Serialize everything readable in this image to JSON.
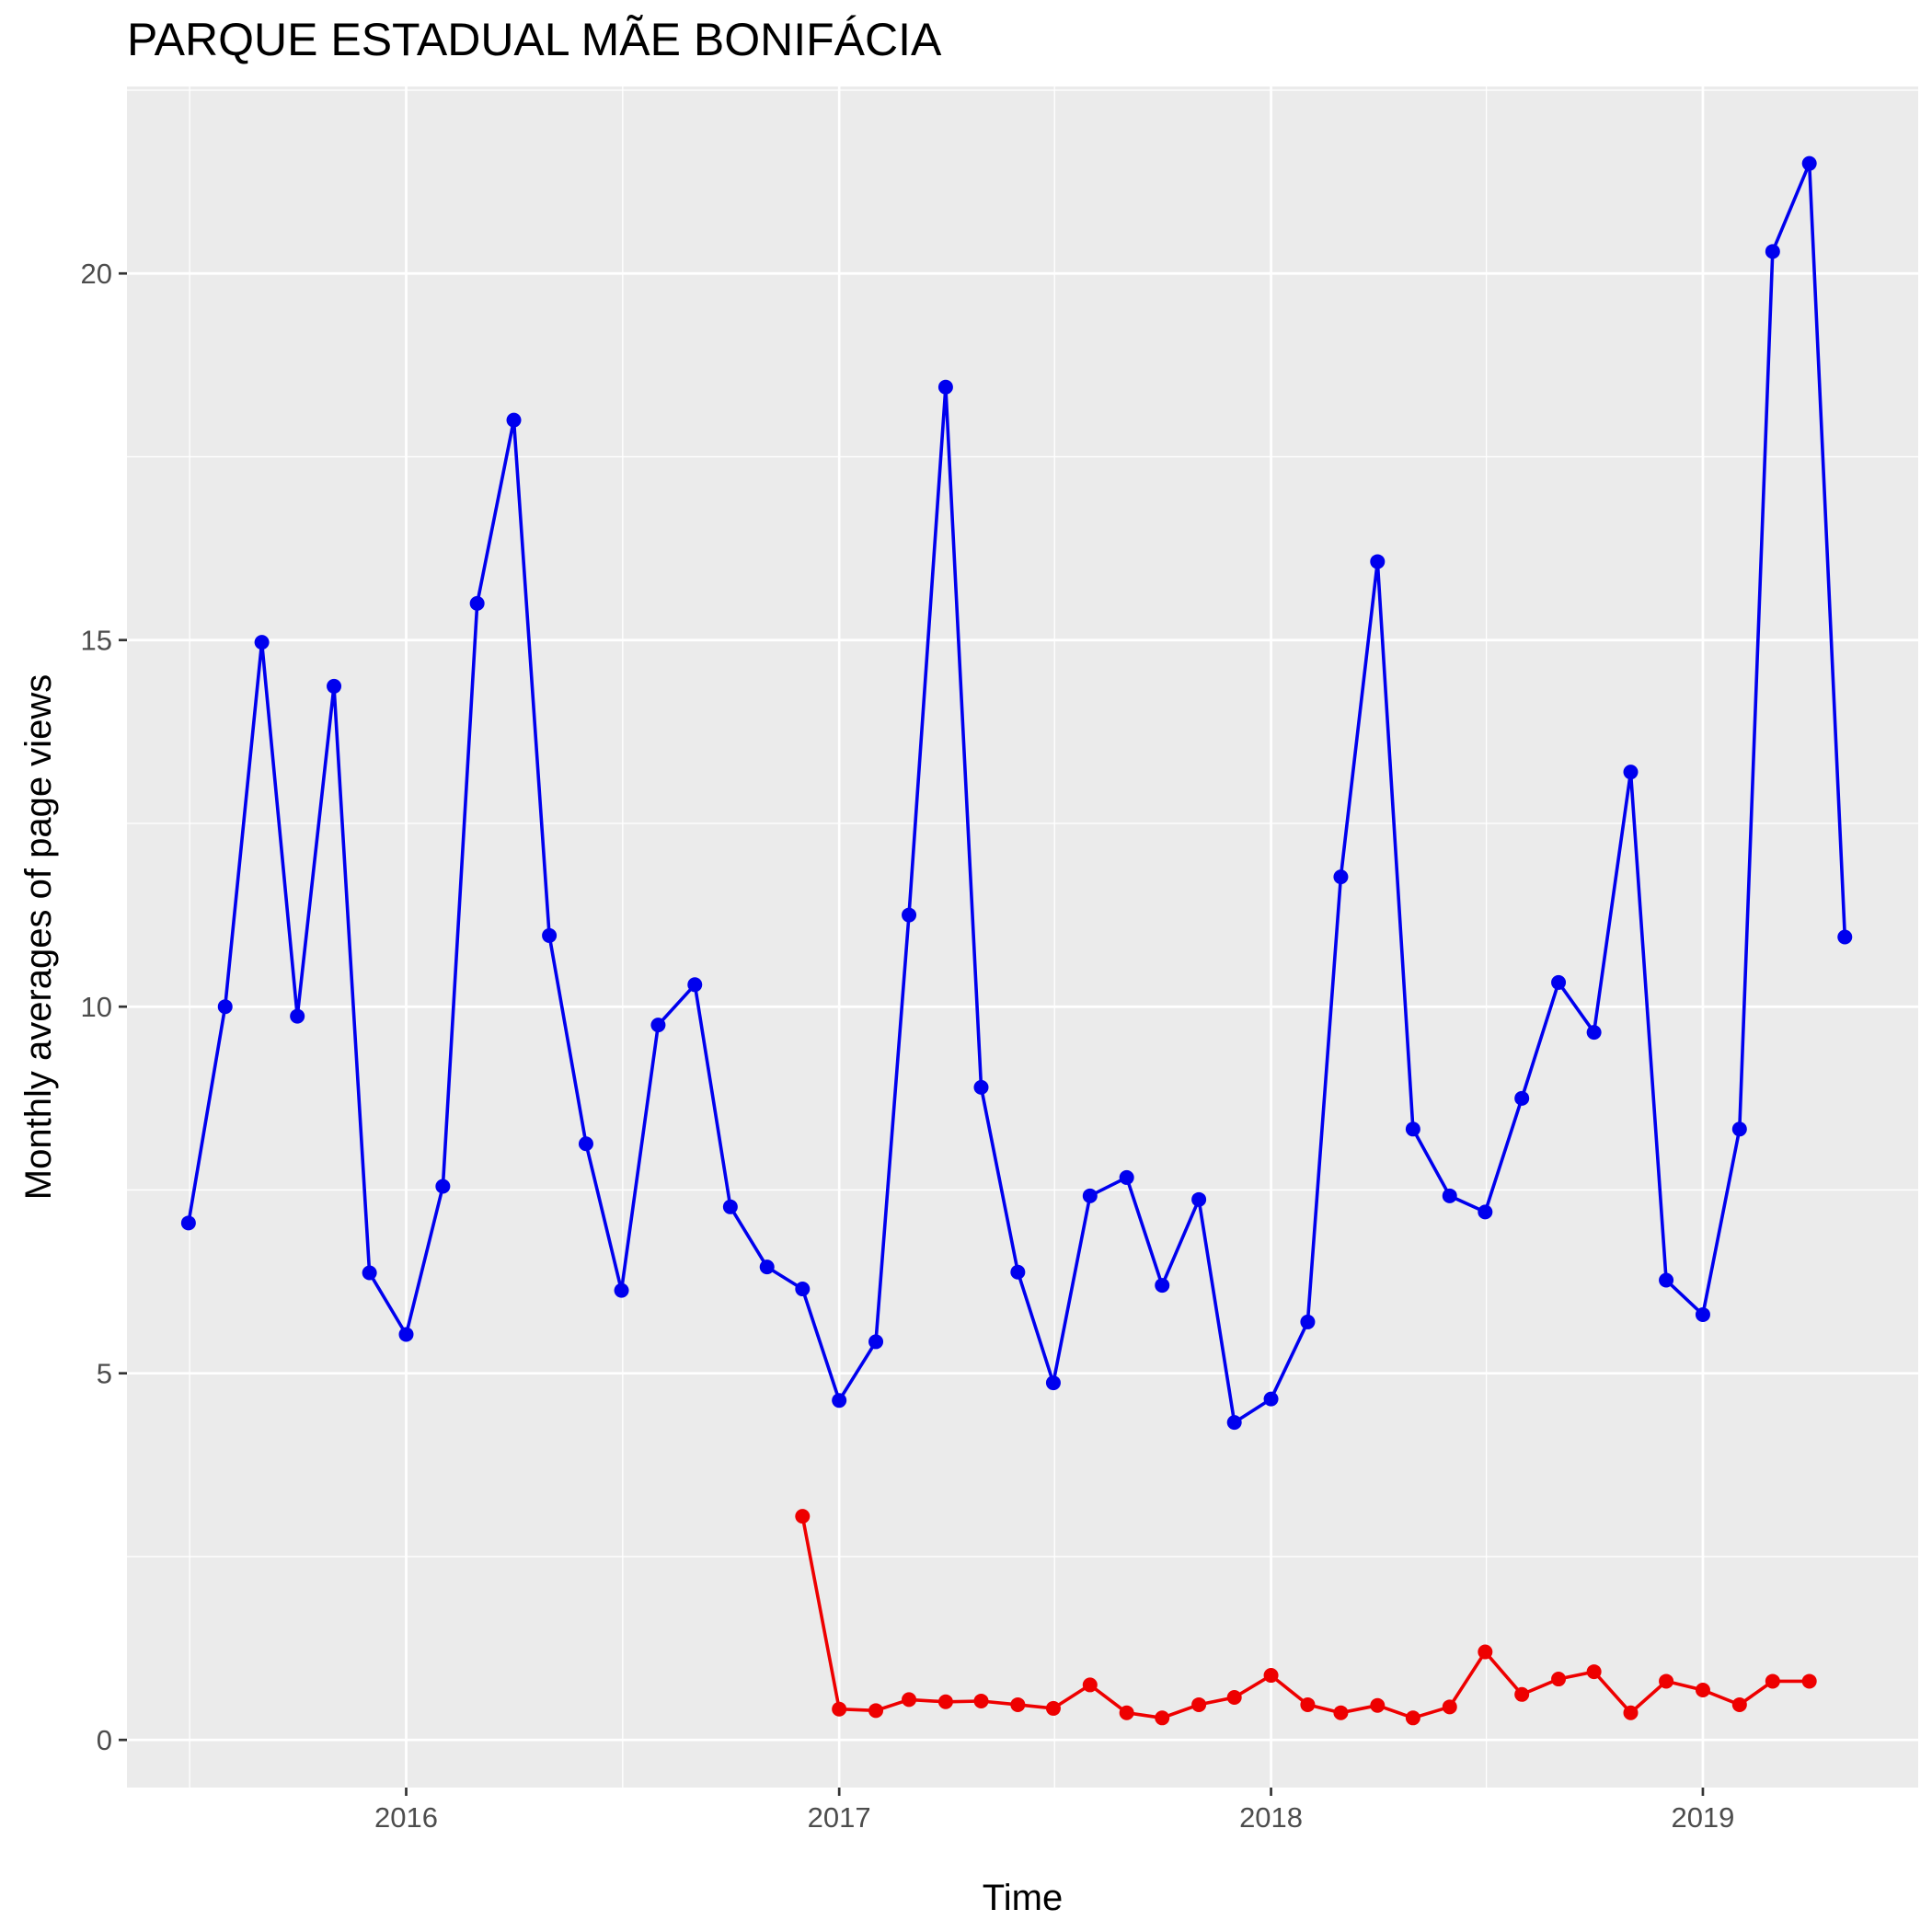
{
  "chart_data": {
    "type": "line",
    "title": "PARQUE ESTADUAL MÃE BONIFÁCIA",
    "xlabel": "Time",
    "ylabel": "Monthly averages of page views",
    "x_ticks": [
      "2016",
      "2017",
      "2018",
      "2019"
    ],
    "y_ticks": [
      "0",
      "5",
      "10",
      "15",
      "20"
    ],
    "xlim": [
      "2015-05-10",
      "2019-07-02"
    ],
    "ylim": [
      -0.65,
      22.55
    ],
    "grid": true,
    "legend": "none",
    "series": [
      {
        "color": "#0000ee",
        "points": [
          [
            "2015-07-01",
            7.05
          ],
          [
            "2015-08-01",
            10.0
          ],
          [
            "2015-09-01",
            14.97
          ],
          [
            "2015-10-01",
            9.87
          ],
          [
            "2015-11-01",
            14.37
          ],
          [
            "2015-12-01",
            6.37
          ],
          [
            "2016-01-01",
            5.53
          ],
          [
            "2016-02-01",
            7.55
          ],
          [
            "2016-03-01",
            15.5
          ],
          [
            "2016-04-01",
            18.0
          ],
          [
            "2016-05-01",
            10.97
          ],
          [
            "2016-06-01",
            8.13
          ],
          [
            "2016-07-01",
            6.13
          ],
          [
            "2016-08-01",
            9.75
          ],
          [
            "2016-09-01",
            10.3
          ],
          [
            "2016-10-01",
            7.27
          ],
          [
            "2016-11-01",
            6.45
          ],
          [
            "2016-12-01",
            6.15
          ],
          [
            "2017-01-01",
            4.63
          ],
          [
            "2017-02-01",
            5.43
          ],
          [
            "2017-03-01",
            11.25
          ],
          [
            "2017-04-01",
            18.45
          ],
          [
            "2017-05-01",
            8.9
          ],
          [
            "2017-06-01",
            6.38
          ],
          [
            "2017-07-01",
            4.87
          ],
          [
            "2017-08-01",
            7.42
          ],
          [
            "2017-09-01",
            7.67
          ],
          [
            "2017-10-01",
            6.2
          ],
          [
            "2017-11-01",
            7.37
          ],
          [
            "2017-12-01",
            4.33
          ],
          [
            "2018-01-01",
            4.65
          ],
          [
            "2018-02-01",
            5.7
          ],
          [
            "2018-03-01",
            11.77
          ],
          [
            "2018-04-01",
            16.07
          ],
          [
            "2018-05-01",
            8.33
          ],
          [
            "2018-06-01",
            7.42
          ],
          [
            "2018-07-01",
            7.2
          ],
          [
            "2018-08-01",
            8.75
          ],
          [
            "2018-09-01",
            10.33
          ],
          [
            "2018-10-01",
            9.65
          ],
          [
            "2018-11-01",
            13.2
          ],
          [
            "2018-12-01",
            6.27
          ],
          [
            "2019-01-01",
            5.8
          ],
          [
            "2019-02-01",
            8.33
          ],
          [
            "2019-03-01",
            20.3
          ],
          [
            "2019-04-01",
            21.5
          ],
          [
            "2019-05-01",
            10.95
          ]
        ]
      },
      {
        "color": "#ee0000",
        "points": [
          [
            "2016-12-01",
            3.05
          ],
          [
            "2017-01-01",
            0.42
          ],
          [
            "2017-02-01",
            0.4
          ],
          [
            "2017-03-01",
            0.55
          ],
          [
            "2017-04-01",
            0.52
          ],
          [
            "2017-05-01",
            0.53
          ],
          [
            "2017-06-01",
            0.48
          ],
          [
            "2017-07-01",
            0.43
          ],
          [
            "2017-08-01",
            0.75
          ],
          [
            "2017-09-01",
            0.37
          ],
          [
            "2017-10-01",
            0.3
          ],
          [
            "2017-11-01",
            0.48
          ],
          [
            "2017-12-01",
            0.58
          ],
          [
            "2018-01-01",
            0.88
          ],
          [
            "2018-02-01",
            0.48
          ],
          [
            "2018-03-01",
            0.37
          ],
          [
            "2018-04-01",
            0.47
          ],
          [
            "2018-05-01",
            0.3
          ],
          [
            "2018-06-01",
            0.45
          ],
          [
            "2018-07-01",
            1.2
          ],
          [
            "2018-08-01",
            0.62
          ],
          [
            "2018-09-01",
            0.83
          ],
          [
            "2018-10-01",
            0.93
          ],
          [
            "2018-11-01",
            0.37
          ],
          [
            "2018-12-01",
            0.8
          ],
          [
            "2019-01-01",
            0.68
          ],
          [
            "2019-02-01",
            0.48
          ],
          [
            "2019-03-01",
            0.8
          ],
          [
            "2019-04-01",
            0.8
          ]
        ]
      }
    ]
  }
}
